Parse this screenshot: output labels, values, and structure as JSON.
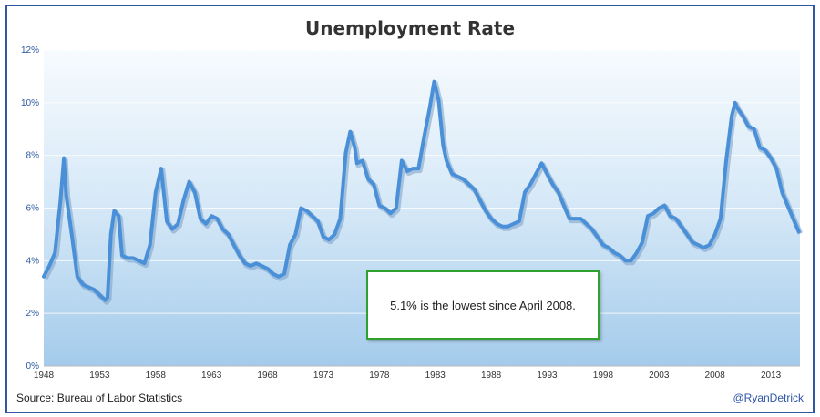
{
  "chart_data": {
    "type": "line",
    "title": "Unemployment Rate",
    "xlabel": "",
    "ylabel": "",
    "ylim": [
      0,
      12
    ],
    "xlim": [
      1948,
      2015.6
    ],
    "grid": true,
    "x_ticks": [
      "1948",
      "1953",
      "1958",
      "1963",
      "1968",
      "1973",
      "1978",
      "1983",
      "1988",
      "1993",
      "1998",
      "2003",
      "2008",
      "2013"
    ],
    "y_ticks": [
      "0%",
      "2%",
      "4%",
      "6%",
      "8%",
      "10%",
      "12%"
    ],
    "series": [
      {
        "name": "",
        "color": "#4a90d9",
        "x": [
          1948.0,
          1948.5,
          1949.0,
          1949.5,
          1949.8,
          1950.0,
          1950.5,
          1951.0,
          1951.5,
          1952.0,
          1952.5,
          1953.0,
          1953.5,
          1953.7,
          1954.0,
          1954.3,
          1954.7,
          1955.0,
          1955.5,
          1956.0,
          1956.5,
          1957.0,
          1957.5,
          1958.0,
          1958.5,
          1959.0,
          1959.5,
          1960.0,
          1960.5,
          1961.0,
          1961.5,
          1962.0,
          1962.5,
          1963.0,
          1963.5,
          1964.0,
          1964.5,
          1965.0,
          1965.5,
          1966.0,
          1966.5,
          1967.0,
          1967.5,
          1968.0,
          1968.5,
          1969.0,
          1969.5,
          1970.0,
          1970.5,
          1971.0,
          1971.5,
          1972.0,
          1972.5,
          1973.0,
          1973.5,
          1974.0,
          1974.5,
          1975.0,
          1975.4,
          1975.8,
          1976.0,
          1976.5,
          1977.0,
          1977.5,
          1978.0,
          1978.5,
          1979.0,
          1979.5,
          1980.0,
          1980.5,
          1981.0,
          1981.5,
          1982.0,
          1982.5,
          1982.9,
          1983.3,
          1983.7,
          1984.0,
          1984.5,
          1985.0,
          1985.5,
          1986.0,
          1986.5,
          1987.0,
          1987.5,
          1988.0,
          1988.5,
          1989.0,
          1989.5,
          1990.0,
          1990.5,
          1991.0,
          1991.5,
          1992.0,
          1992.5,
          1993.0,
          1993.5,
          1994.0,
          1994.5,
          1995.0,
          1995.5,
          1996.0,
          1996.5,
          1997.0,
          1997.5,
          1998.0,
          1998.5,
          1999.0,
          1999.5,
          2000.0,
          2000.5,
          2001.0,
          2001.5,
          2002.0,
          2002.5,
          2003.0,
          2003.5,
          2004.0,
          2004.5,
          2005.0,
          2005.5,
          2006.0,
          2006.5,
          2007.0,
          2007.5,
          2008.0,
          2008.5,
          2009.0,
          2009.5,
          2009.8,
          2010.0,
          2010.5,
          2011.0,
          2011.5,
          2012.0,
          2012.5,
          2013.0,
          2013.5,
          2014.0,
          2014.5,
          2015.0,
          2015.5
        ],
        "y": [
          3.4,
          3.8,
          4.3,
          6.3,
          7.9,
          6.5,
          5.0,
          3.4,
          3.1,
          3.0,
          2.9,
          2.7,
          2.5,
          2.6,
          5.0,
          5.9,
          5.7,
          4.2,
          4.1,
          4.1,
          4.0,
          3.9,
          4.6,
          6.6,
          7.5,
          5.5,
          5.2,
          5.4,
          6.3,
          7.0,
          6.6,
          5.6,
          5.4,
          5.7,
          5.6,
          5.2,
          5.0,
          4.6,
          4.2,
          3.9,
          3.8,
          3.9,
          3.8,
          3.7,
          3.5,
          3.4,
          3.5,
          4.6,
          5.0,
          6.0,
          5.9,
          5.7,
          5.5,
          4.9,
          4.8,
          5.0,
          5.6,
          8.1,
          8.9,
          8.3,
          7.7,
          7.8,
          7.1,
          6.9,
          6.1,
          6.0,
          5.8,
          6.0,
          7.8,
          7.4,
          7.5,
          7.5,
          8.7,
          9.8,
          10.8,
          10.1,
          8.4,
          7.8,
          7.3,
          7.2,
          7.1,
          6.9,
          6.7,
          6.3,
          5.9,
          5.6,
          5.4,
          5.3,
          5.3,
          5.4,
          5.5,
          6.6,
          6.9,
          7.3,
          7.7,
          7.3,
          6.9,
          6.6,
          6.1,
          5.6,
          5.6,
          5.6,
          5.4,
          5.2,
          4.9,
          4.6,
          4.5,
          4.3,
          4.2,
          4.0,
          4.0,
          4.3,
          4.7,
          5.7,
          5.8,
          6.0,
          6.1,
          5.7,
          5.6,
          5.3,
          5.0,
          4.7,
          4.6,
          4.5,
          4.6,
          5.0,
          5.6,
          7.8,
          9.5,
          10.0,
          9.8,
          9.5,
          9.1,
          9.0,
          8.3,
          8.2,
          7.9,
          7.5,
          6.6,
          6.1,
          5.6,
          5.1
        ]
      }
    ],
    "annotations": [
      "5.1% is the lowest since April 2008."
    ]
  },
  "source_label": "Source:  Bureau of Labor Statistics",
  "handle": "@RyanDetrick",
  "colors": {
    "frame": "#2f57a3",
    "line": "#4a90d9",
    "annotation_border": "#2fa12f",
    "axis_text": "#2b5aa0"
  }
}
